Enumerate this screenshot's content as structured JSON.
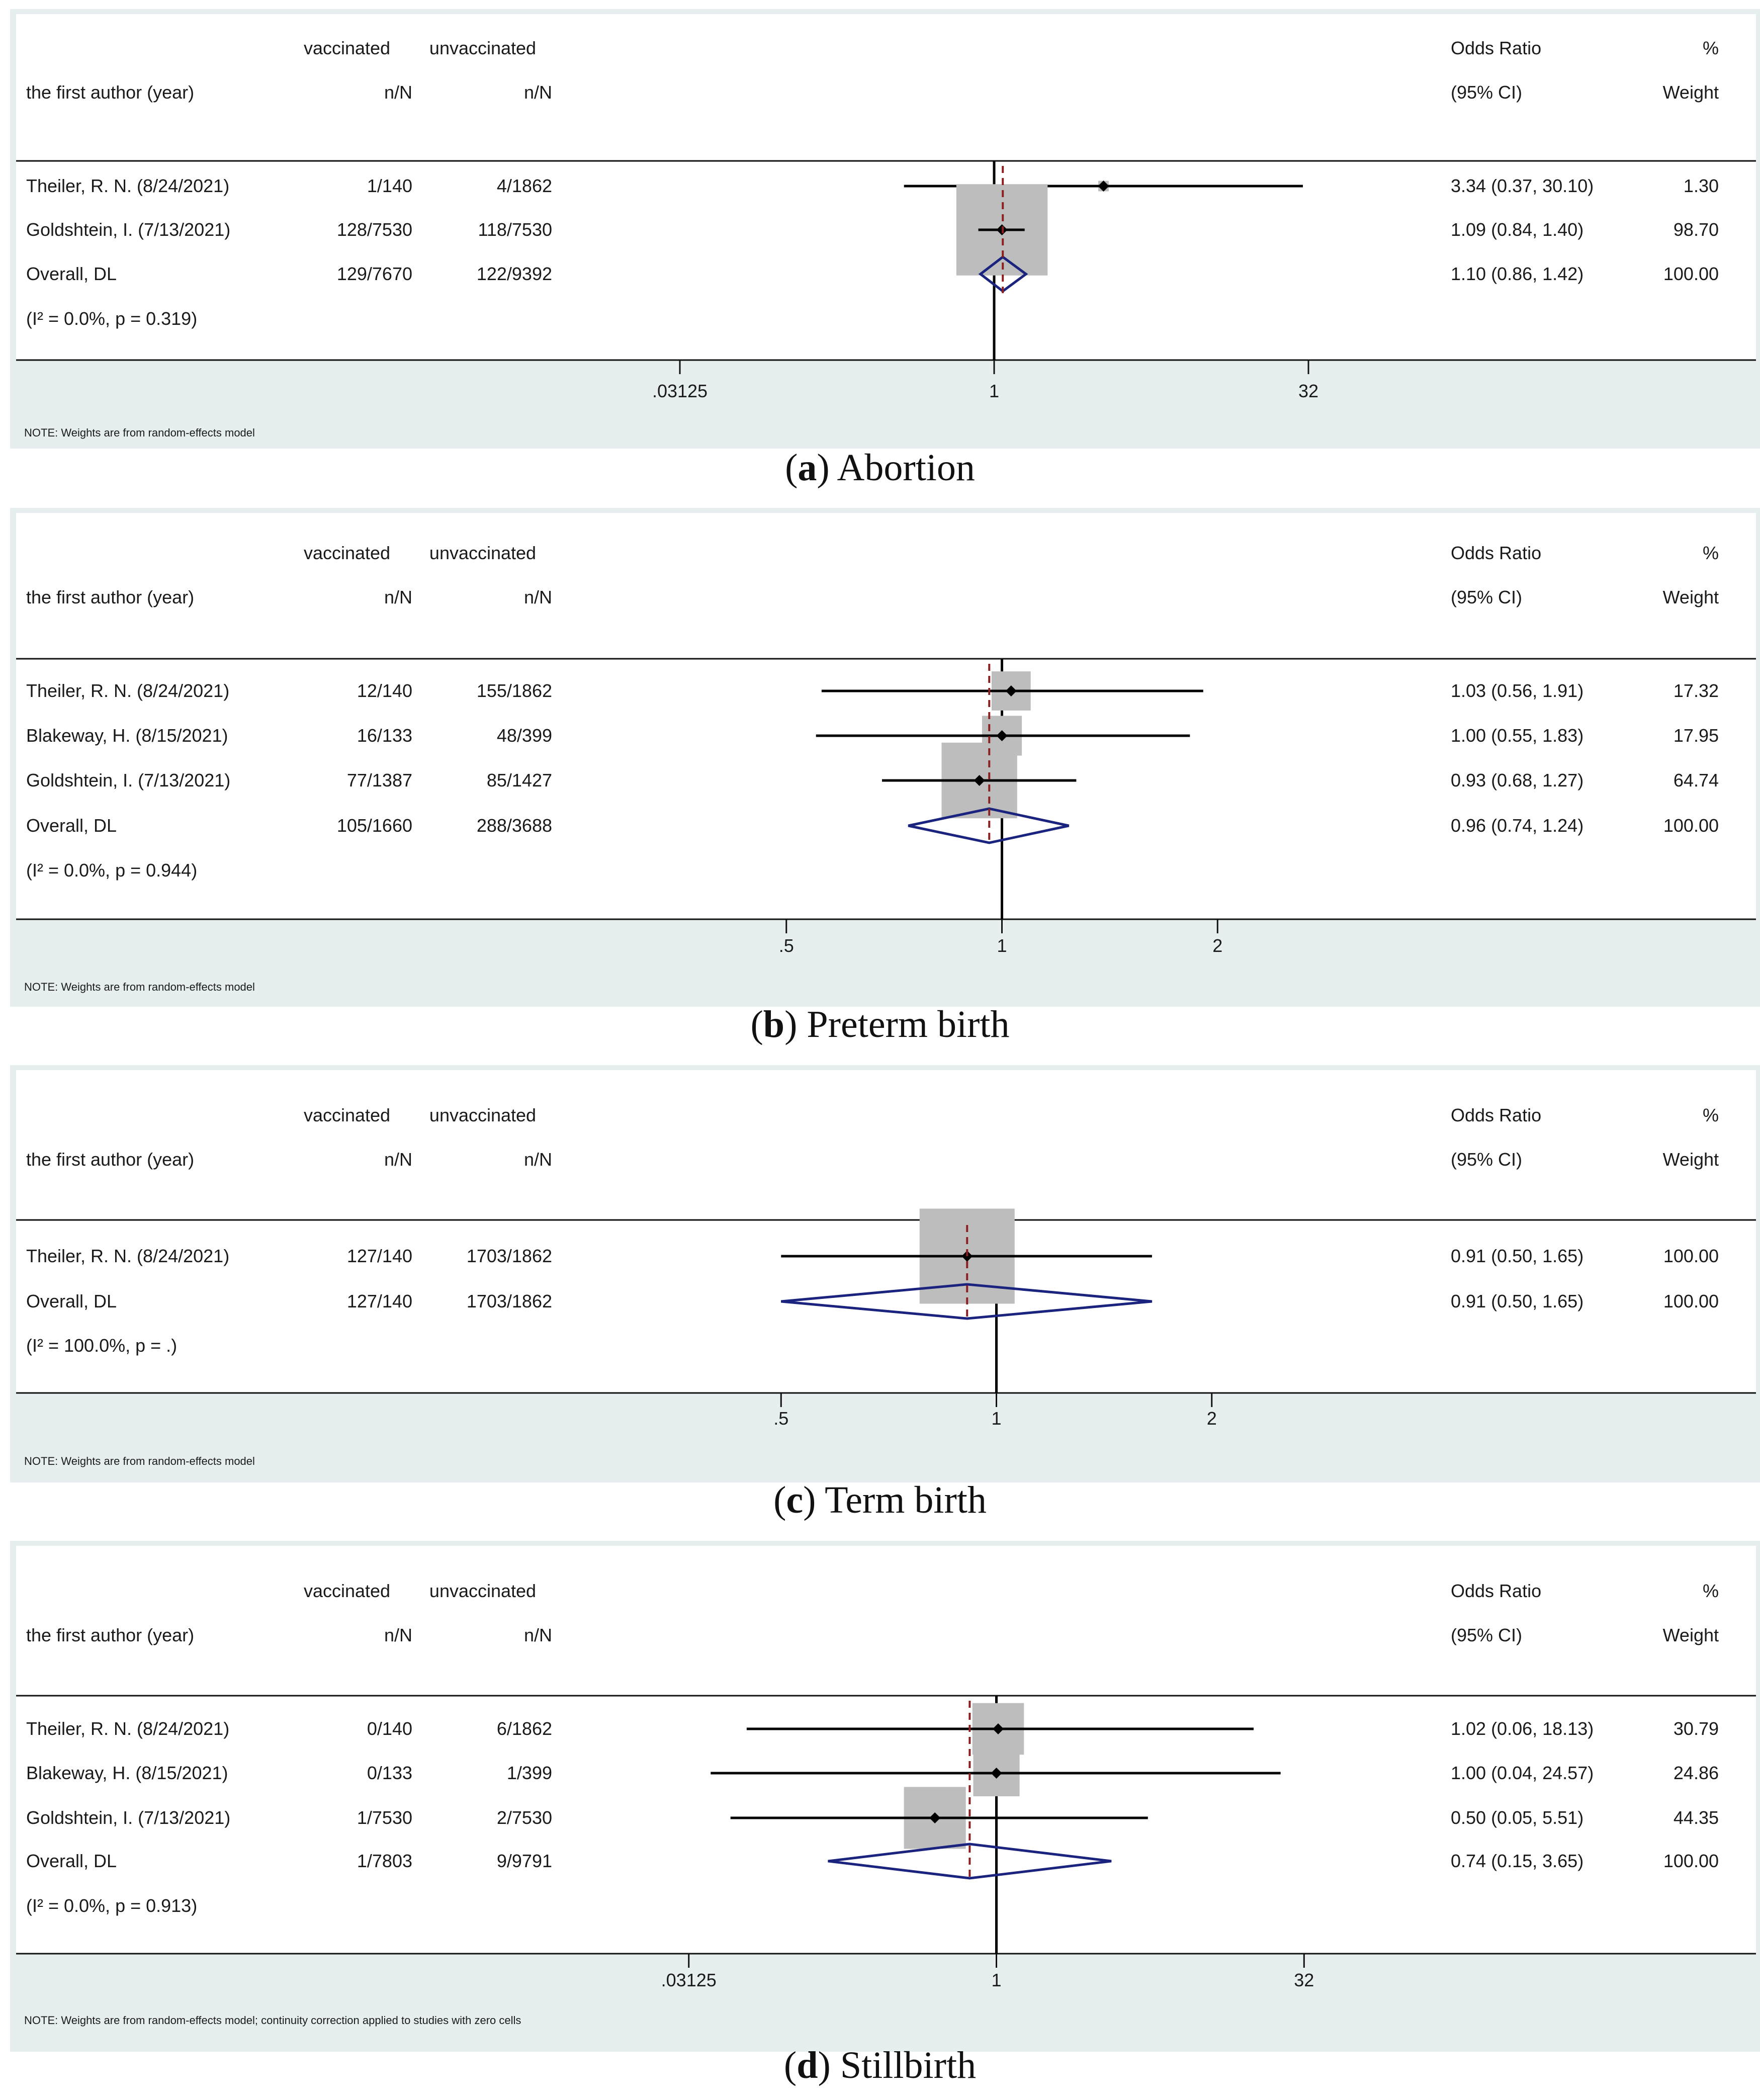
{
  "figure": {
    "columns": {
      "author": "the first author (year)",
      "vaccinated": "vaccinated",
      "unvaccinated": "unvaccinated",
      "nN": "n/N",
      "odds_ratio": "Odds Ratio",
      "ci": "(95% CI)",
      "pct": "%",
      "weight": "Weight"
    },
    "colors": {
      "panel_bg": "#e7eef0",
      "plot_bg": "#ffffff",
      "diamond": "#1a237e",
      "ref_line": "#8b2020",
      "weight_box": "#bdbdbd",
      "line": "#000000"
    }
  },
  "chart_data": [
    {
      "type": "forest",
      "scale": "log",
      "caption_letter": "a",
      "caption_text": " Abortion",
      "x_ticks": [
        0.03125,
        1,
        32
      ],
      "x_tick_labels": [
        ".03125",
        "1",
        "32"
      ],
      "xlim": [
        0.0078125,
        128
      ],
      "overall_or": 1.1,
      "note": "NOTE: Weights are from random-effects model",
      "heterogeneity": "(I² = 0.0%, p = 0.319)",
      "studies": [
        {
          "author": "Theiler, R. N. (8/24/2021)",
          "vac": "1/140",
          "unvac": "4/1862",
          "or": 3.34,
          "lo": 0.37,
          "hi": 30.1,
          "or_text": "3.34 (0.37, 30.10)",
          "weight": 1.3,
          "weight_text": "1.30"
        },
        {
          "author": "Goldshtein, I. (7/13/2021)",
          "vac": "128/7530",
          "unvac": "118/7530",
          "or": 1.09,
          "lo": 0.84,
          "hi": 1.4,
          "or_text": "1.09 (0.84, 1.40)",
          "weight": 98.7,
          "weight_text": "98.70"
        }
      ],
      "overall": {
        "author": "Overall, DL",
        "vac": "129/7670",
        "unvac": "122/9392",
        "or": 1.1,
        "lo": 0.86,
        "hi": 1.42,
        "or_text": "1.10 (0.86, 1.42)",
        "weight_text": "100.00"
      }
    },
    {
      "type": "forest",
      "scale": "log",
      "caption_letter": "b",
      "caption_text": " Preterm birth",
      "x_ticks": [
        0.5,
        1,
        2
      ],
      "x_tick_labels": [
        ".5",
        "1",
        "2"
      ],
      "xlim": [
        0.25,
        4
      ],
      "overall_or": 0.96,
      "note": "NOTE: Weights are from random-effects model",
      "heterogeneity": "(I² = 0.0%, p = 0.944)",
      "studies": [
        {
          "author": "Theiler, R. N. (8/24/2021)",
          "vac": "12/140",
          "unvac": "155/1862",
          "or": 1.03,
          "lo": 0.56,
          "hi": 1.91,
          "or_text": "1.03 (0.56, 1.91)",
          "weight": 17.32,
          "weight_text": "17.32"
        },
        {
          "author": "Blakeway, H. (8/15/2021)",
          "vac": "16/133",
          "unvac": "48/399",
          "or": 1.0,
          "lo": 0.55,
          "hi": 1.83,
          "or_text": "1.00 (0.55, 1.83)",
          "weight": 17.95,
          "weight_text": "17.95"
        },
        {
          "author": "Goldshtein, I. (7/13/2021)",
          "vac": "77/1387",
          "unvac": "85/1427",
          "or": 0.93,
          "lo": 0.68,
          "hi": 1.27,
          "or_text": "0.93 (0.68, 1.27)",
          "weight": 64.74,
          "weight_text": "64.74"
        }
      ],
      "overall": {
        "author": "Overall, DL",
        "vac": "105/1660",
        "unvac": "288/3688",
        "or": 0.96,
        "lo": 0.74,
        "hi": 1.24,
        "or_text": "0.96 (0.74, 1.24)",
        "weight_text": "100.00"
      }
    },
    {
      "type": "forest",
      "scale": "log",
      "caption_letter": "c",
      "caption_text": " Term birth",
      "x_ticks": [
        0.5,
        1,
        2
      ],
      "x_tick_labels": [
        ".5",
        "1",
        "2"
      ],
      "xlim": [
        0.25,
        4
      ],
      "overall_or": 0.91,
      "note": "NOTE: Weights are from random-effects model",
      "heterogeneity": "(I² = 100.0%, p = .)",
      "studies": [
        {
          "author": "Theiler, R. N. (8/24/2021)",
          "vac": "127/140",
          "unvac": "1703/1862",
          "or": 0.91,
          "lo": 0.5,
          "hi": 1.65,
          "or_text": "0.91 (0.50, 1.65)",
          "weight": 100.0,
          "weight_text": "100.00"
        }
      ],
      "overall": {
        "author": "Overall, DL",
        "vac": "127/140",
        "unvac": "1703/1862",
        "or": 0.91,
        "lo": 0.5,
        "hi": 1.65,
        "or_text": "0.91 (0.50, 1.65)",
        "weight_text": "100.00"
      }
    },
    {
      "type": "forest",
      "scale": "log",
      "caption_letter": "d",
      "caption_text": " Stillbirth",
      "x_ticks": [
        0.03125,
        1,
        32
      ],
      "x_tick_labels": [
        ".03125",
        "1",
        "32"
      ],
      "xlim": [
        0.0078125,
        128
      ],
      "overall_or": 0.74,
      "note": "NOTE: Weights are from random-effects model; continuity correction applied to studies with zero cells",
      "heterogeneity": "(I² = 0.0%, p = 0.913)",
      "studies": [
        {
          "author": "Theiler, R. N. (8/24/2021)",
          "vac": "0/140",
          "unvac": "6/1862",
          "or": 1.02,
          "lo": 0.06,
          "hi": 18.13,
          "or_text": "1.02 (0.06, 18.13)",
          "weight": 30.79,
          "weight_text": "30.79"
        },
        {
          "author": "Blakeway, H. (8/15/2021)",
          "vac": "0/133",
          "unvac": "1/399",
          "or": 1.0,
          "lo": 0.04,
          "hi": 24.57,
          "or_text": "1.00 (0.04, 24.57)",
          "weight": 24.86,
          "weight_text": "24.86"
        },
        {
          "author": "Goldshtein, I. (7/13/2021)",
          "vac": "1/7530",
          "unvac": "2/7530",
          "or": 0.5,
          "lo": 0.05,
          "hi": 5.51,
          "or_text": "0.50 (0.05, 5.51)",
          "weight": 44.35,
          "weight_text": "44.35"
        }
      ],
      "overall": {
        "author": "Overall, DL",
        "vac": "1/7803",
        "unvac": "9/9791",
        "or": 0.74,
        "lo": 0.15,
        "hi": 3.65,
        "or_text": "0.74 (0.15, 3.65)",
        "weight_text": "100.00"
      }
    }
  ]
}
